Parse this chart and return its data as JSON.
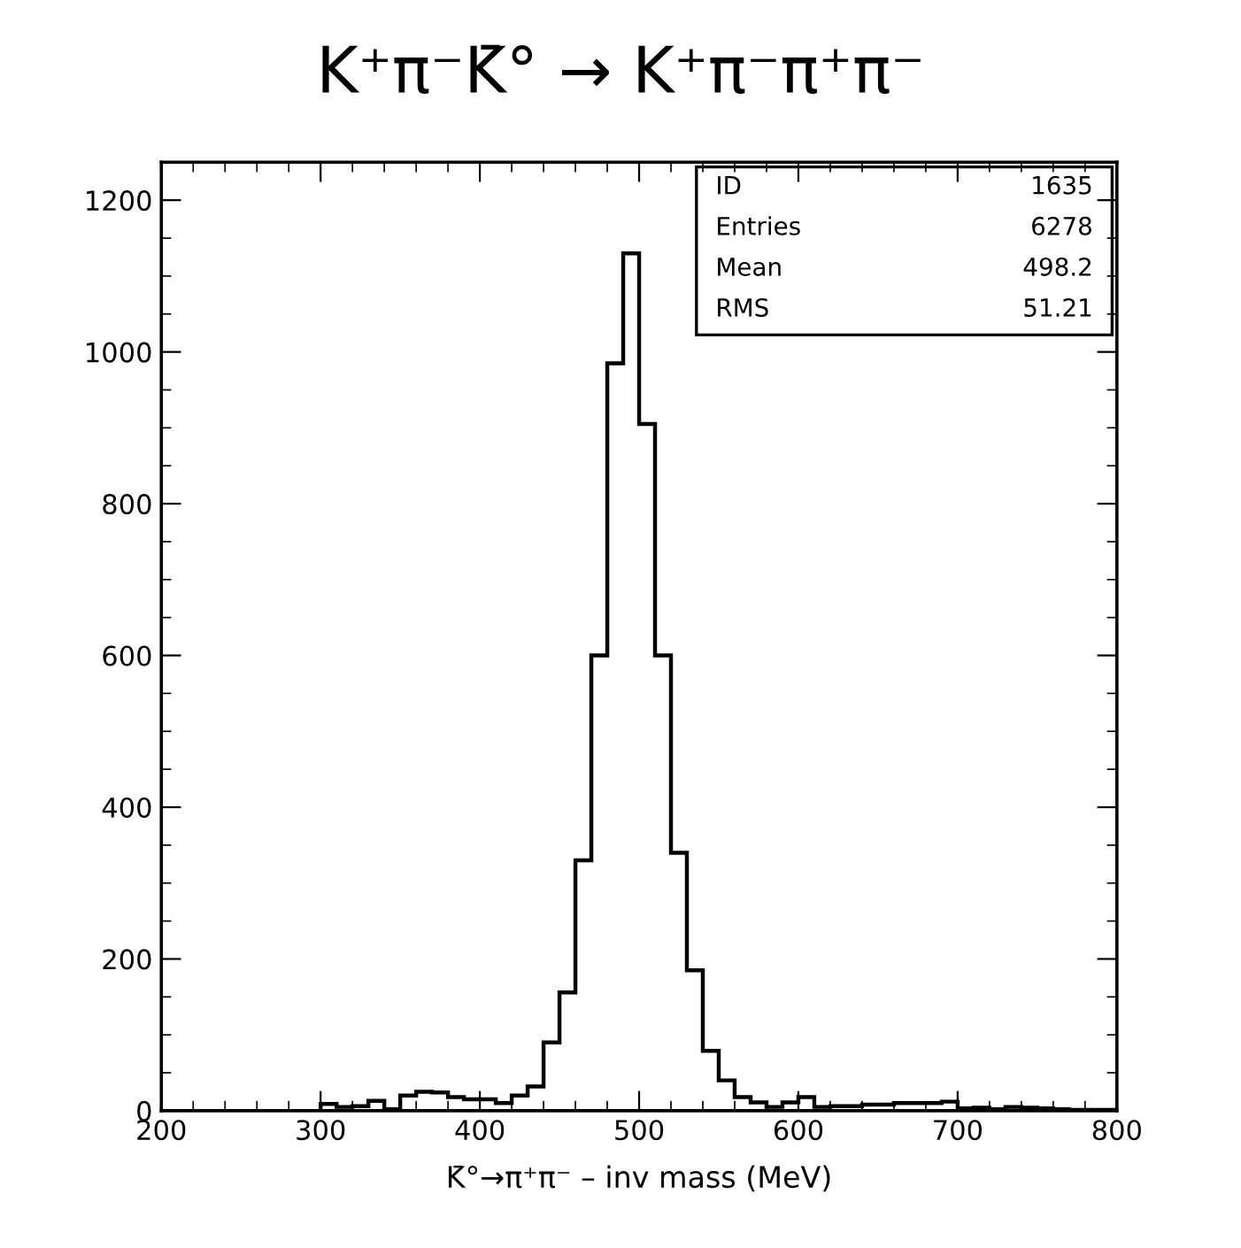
{
  "chart_data": {
    "type": "histogram",
    "title": "K⁺π⁻K̄° → K⁺π⁻π⁺π⁻",
    "xlabel": "K̄°→π⁺π⁻ – inv mass (MeV)",
    "bins": [
      300,
      310,
      320,
      330,
      340,
      350,
      360,
      370,
      380,
      390,
      400,
      410,
      420,
      430,
      440,
      450,
      460,
      470,
      480,
      490,
      500,
      510,
      520,
      530,
      540,
      550,
      560,
      570,
      580,
      590,
      600,
      610,
      620,
      630,
      640,
      650,
      660,
      670,
      680,
      690,
      700,
      710,
      720,
      730,
      740,
      750,
      760,
      770,
      780,
      790,
      800
    ],
    "values": [
      9,
      5,
      6,
      13,
      2,
      20,
      25,
      24,
      18,
      15,
      15,
      10,
      20,
      32,
      90,
      156,
      330,
      600,
      985,
      1130,
      905,
      600,
      340,
      185,
      79,
      40,
      18,
      11,
      5,
      11,
      18,
      5,
      6,
      6,
      8,
      8,
      10,
      10,
      10,
      12,
      3,
      4,
      2,
      5,
      4,
      3,
      2,
      1,
      1,
      1
    ],
    "color": "#000000",
    "xlim": [
      200,
      800
    ],
    "xticks": [
      200,
      300,
      400,
      500,
      600,
      700,
      800
    ],
    "ylim": [
      0,
      1250
    ],
    "yticks": [
      0,
      200,
      400,
      600,
      800,
      1000,
      1200
    ],
    "grid": false,
    "legend": false,
    "annotations": [
      "ID 1635",
      "Entries 6278",
      "Mean 498.2",
      "RMS 51.21"
    ]
  }
}
